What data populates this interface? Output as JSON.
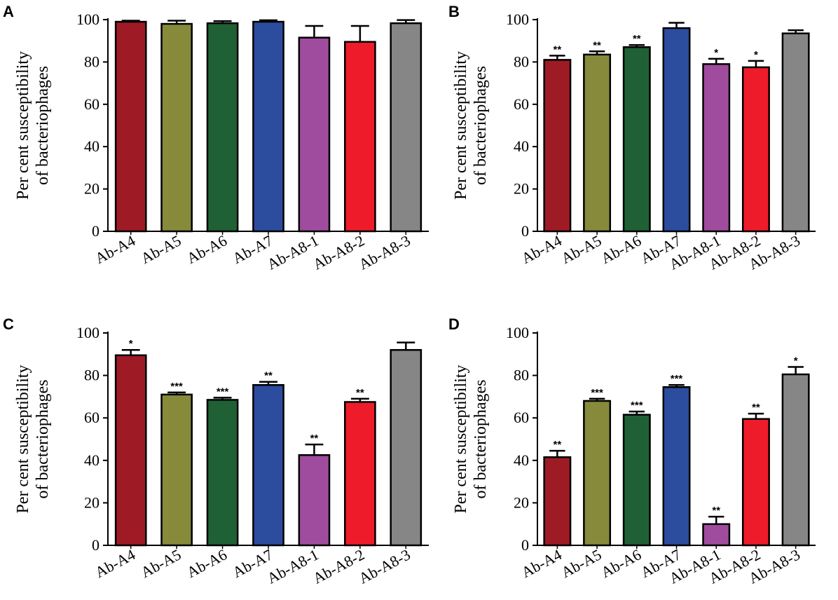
{
  "chart_data": [
    {
      "type": "bar",
      "panel": "A",
      "categories": [
        "Ab-A4",
        "Ab-A5",
        "Ab-A6",
        "Ab-A7",
        "Ab-A8-1",
        "Ab-A8-2",
        "Ab-A8-3"
      ],
      "values": [
        99,
        98,
        98.3,
        99,
        91.5,
        89.5,
        98.3
      ],
      "errors": [
        0.5,
        1.5,
        1,
        0.7,
        5.5,
        7.5,
        1.5
      ],
      "significance": [
        "",
        "",
        "",
        "",
        "",
        "",
        ""
      ],
      "ylabel_lines": [
        "Per cent susceptibility",
        "of bacteriophages"
      ],
      "ylim": [
        0,
        100
      ],
      "yticks": [
        0,
        20,
        40,
        60,
        80,
        100
      ],
      "colors": [
        "#9e1a25",
        "#878a3a",
        "#1f6134",
        "#2c4c9e",
        "#a04c9e",
        "#ee1c2b",
        "#868686"
      ]
    },
    {
      "type": "bar",
      "panel": "B",
      "categories": [
        "Ab-A4",
        "Ab-A5",
        "Ab-A6",
        "Ab-A7",
        "Ab-A8-1",
        "Ab-A8-2",
        "Ab-A8-3"
      ],
      "values": [
        81,
        83.5,
        87,
        96,
        79,
        77.5,
        93.5
      ],
      "errors": [
        2,
        1.5,
        1,
        2.5,
        2.5,
        3,
        1.5
      ],
      "significance": [
        "**",
        "**",
        "**",
        "",
        "*",
        "*",
        ""
      ],
      "ylabel_lines": [
        "Per cent susceptibility",
        "of bacteriophages"
      ],
      "ylim": [
        0,
        100
      ],
      "yticks": [
        0,
        20,
        40,
        60,
        80,
        100
      ],
      "colors": [
        "#9e1a25",
        "#878a3a",
        "#1f6134",
        "#2c4c9e",
        "#a04c9e",
        "#ee1c2b",
        "#868686"
      ]
    },
    {
      "type": "bar",
      "panel": "C",
      "categories": [
        "Ab-A4",
        "Ab-A5",
        "Ab-A6",
        "Ab-A7",
        "Ab-A8-1",
        "Ab-A8-2",
        "Ab-A8-3"
      ],
      "values": [
        89.5,
        71,
        68.5,
        75.5,
        42.5,
        67.5,
        92
      ],
      "errors": [
        2.5,
        1,
        1,
        1.5,
        5,
        1.5,
        3.5
      ],
      "significance": [
        "*",
        "***",
        "***",
        "**",
        "**",
        "**",
        ""
      ],
      "ylabel_lines": [
        "Per cent susceptibility",
        "of bacteriophages"
      ],
      "ylim": [
        0,
        100
      ],
      "yticks": [
        0,
        20,
        40,
        60,
        80,
        100
      ],
      "colors": [
        "#9e1a25",
        "#878a3a",
        "#1f6134",
        "#2c4c9e",
        "#a04c9e",
        "#ee1c2b",
        "#868686"
      ]
    },
    {
      "type": "bar",
      "panel": "D",
      "categories": [
        "Ab-A4",
        "Ab-A5",
        "Ab-A6",
        "Ab-A7",
        "Ab-A8-1",
        "Ab-A8-2",
        "Ab-A8-3"
      ],
      "values": [
        41.5,
        68,
        61.5,
        74.5,
        10,
        59.5,
        80.5
      ],
      "errors": [
        3,
        1,
        1.5,
        1,
        3.5,
        2.5,
        3.5
      ],
      "significance": [
        "**",
        "***",
        "***",
        "***",
        "**",
        "**",
        "*"
      ],
      "ylabel_lines": [
        "Per cent susceptibility",
        "of bacteriophages"
      ],
      "ylim": [
        0,
        100
      ],
      "yticks": [
        0,
        20,
        40,
        60,
        80,
        100
      ],
      "colors": [
        "#9e1a25",
        "#878a3a",
        "#1f6134",
        "#2c4c9e",
        "#a04c9e",
        "#ee1c2b",
        "#868686"
      ]
    }
  ]
}
